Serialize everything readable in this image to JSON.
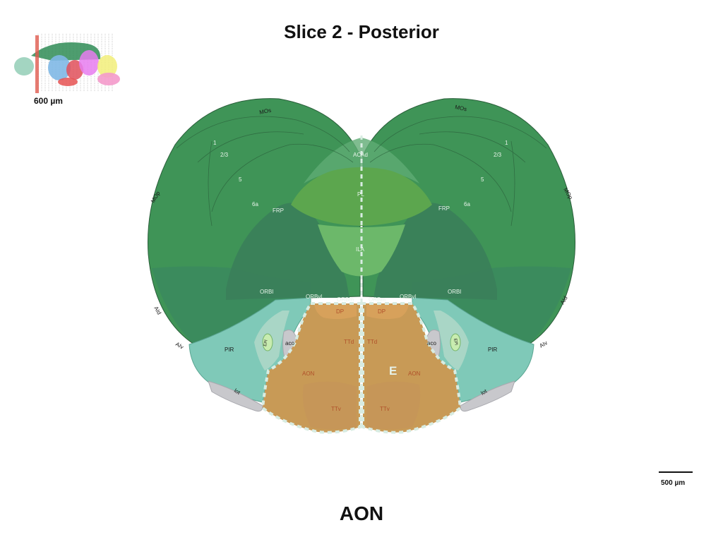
{
  "title": "Slice 2 - Posterior",
  "caption": "AON",
  "thumbnail": {
    "slice_label": "600 µm"
  },
  "scale_bar": {
    "label": "500 µm"
  },
  "colors": {
    "cortex": "#3f9457",
    "cortex_light": "#57a86a",
    "orbital": "#3a7f5a",
    "acad": "#5fab74",
    "pl": "#5ca64e",
    "ila": "#6cb86a",
    "piriform": "#7fc9b8",
    "aon": "#c89a56",
    "tracts": "#c8c8cc",
    "dashed": "#d8ece2"
  },
  "regions": {
    "left": {
      "MOs": "MOs",
      "layer1": "1",
      "layer23": "2/3",
      "layer5": "5",
      "layer6a": "6a",
      "MOp": "MOp",
      "FRP": "FRP",
      "ORBl": "ORBl",
      "ORBvl": "ORBvl",
      "ORBm": "ORBm",
      "AId": "AId",
      "AIv": "AIv",
      "PIR": "PIR",
      "aco": "aco",
      "lot": "lot",
      "EPl": "EPl",
      "DP": "DP",
      "TTd": "TTd",
      "AON": "AON",
      "TTv": "TTv"
    },
    "right": {
      "MOs": "MOs",
      "layer1": "1",
      "layer23": "2/3",
      "layer5": "5",
      "layer6a": "6a",
      "MOp": "MOp",
      "FRP": "FRP",
      "ORBl": "ORBl",
      "ORBvl": "ORBvl",
      "ORBm": "ORBm",
      "AId": "AId",
      "AIv": "AIv",
      "PIR": "PIR",
      "aco": "aco",
      "lot": "lot",
      "EPl": "EPl",
      "DP": "DP",
      "TTd": "TTd",
      "AON": "AON",
      "TTv": "TTv"
    },
    "midline": {
      "ACAd": "ACAd",
      "PL": "PL",
      "ILA": "ILA"
    },
    "marker": "E"
  }
}
